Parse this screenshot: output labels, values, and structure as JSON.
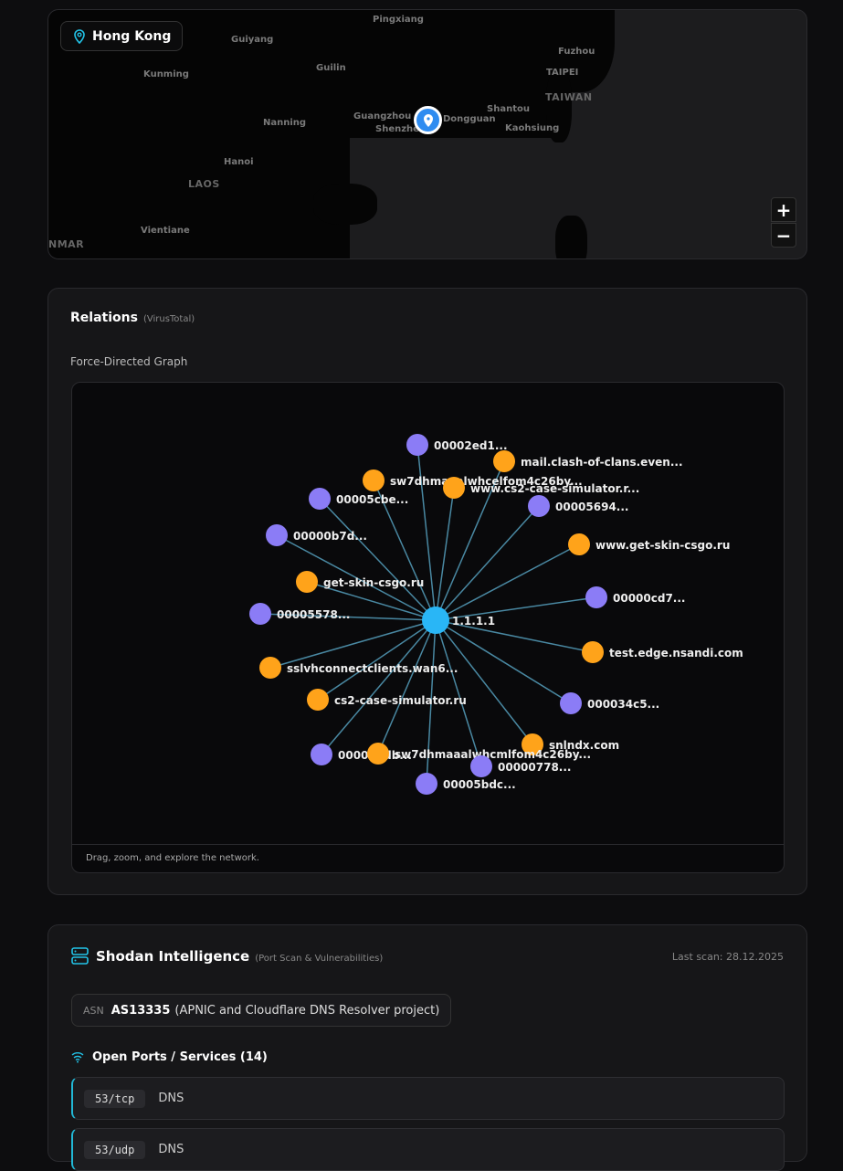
{
  "map": {
    "location": "Hong Kong",
    "cities": [
      "Pingxiang",
      "Guiyang",
      "Fuzhou",
      "Kunming",
      "Guilin",
      "TAIPEI",
      "Guangzhou",
      "Dongguan",
      "Shantou",
      "Shenzhen",
      "Nanning",
      "Kaohsiung",
      "Hanoi",
      "Vientiane"
    ],
    "countries": [
      "TAIWAN",
      "LAOS",
      "NMAR"
    ],
    "zoom_in": "+",
    "zoom_out": "−"
  },
  "relations": {
    "title": "Relations",
    "source": "(VirusTotal)",
    "graph_label": "Force-Directed Graph",
    "footer": "Drag, zoom, and explore the network.",
    "colors": {
      "center": "#29b6f6",
      "file": "#8b7cf6",
      "domain": "#ffa31a",
      "edge": "#5aa9c8"
    },
    "center": "1.1.1.1",
    "nodes": [
      {
        "label": "00002ed1...",
        "type": "file"
      },
      {
        "label": "mail.clash-of-clans.even...",
        "type": "domain"
      },
      {
        "label": "sw7dhmaaalwhcelfom4c26by...",
        "type": "domain"
      },
      {
        "label": "www.cs2-case-simulator.r...",
        "type": "domain"
      },
      {
        "label": "00005cbe...",
        "type": "file"
      },
      {
        "label": "00005694...",
        "type": "file"
      },
      {
        "label": "00000b7d...",
        "type": "file"
      },
      {
        "label": "www.get-skin-csgo.ru",
        "type": "domain"
      },
      {
        "label": "get-skin-csgo.ru",
        "type": "domain"
      },
      {
        "label": "00000cd7...",
        "type": "file"
      },
      {
        "label": "00005578...",
        "type": "file"
      },
      {
        "label": "test.edge.nsandi.com",
        "type": "domain"
      },
      {
        "label": "sslvhconnectclients.wan6...",
        "type": "domain"
      },
      {
        "label": "cs2-case-simulator.ru",
        "type": "domain"
      },
      {
        "label": "000034c5...",
        "type": "file"
      },
      {
        "label": "snlndx.com",
        "type": "domain"
      },
      {
        "label": "000013db...",
        "type": "file"
      },
      {
        "label": "sw7dhmaaalwhcmlfom4c26by...",
        "type": "domain"
      },
      {
        "label": "00000778...",
        "type": "file"
      },
      {
        "label": "00005bdc...",
        "type": "file"
      }
    ]
  },
  "shodan": {
    "title": "Shodan Intelligence",
    "subtitle": "(Port Scan & Vulnerabilities)",
    "last_scan": "Last scan: 28.12.2025",
    "asn_label": "ASN",
    "asn": "AS13335",
    "asn_org": "(APNIC and Cloudflare DNS Resolver project)",
    "ports_title": "Open Ports / Services (14)",
    "ports": [
      {
        "port": "53/tcp",
        "service": "DNS"
      },
      {
        "port": "53/udp",
        "service": "DNS"
      }
    ]
  }
}
